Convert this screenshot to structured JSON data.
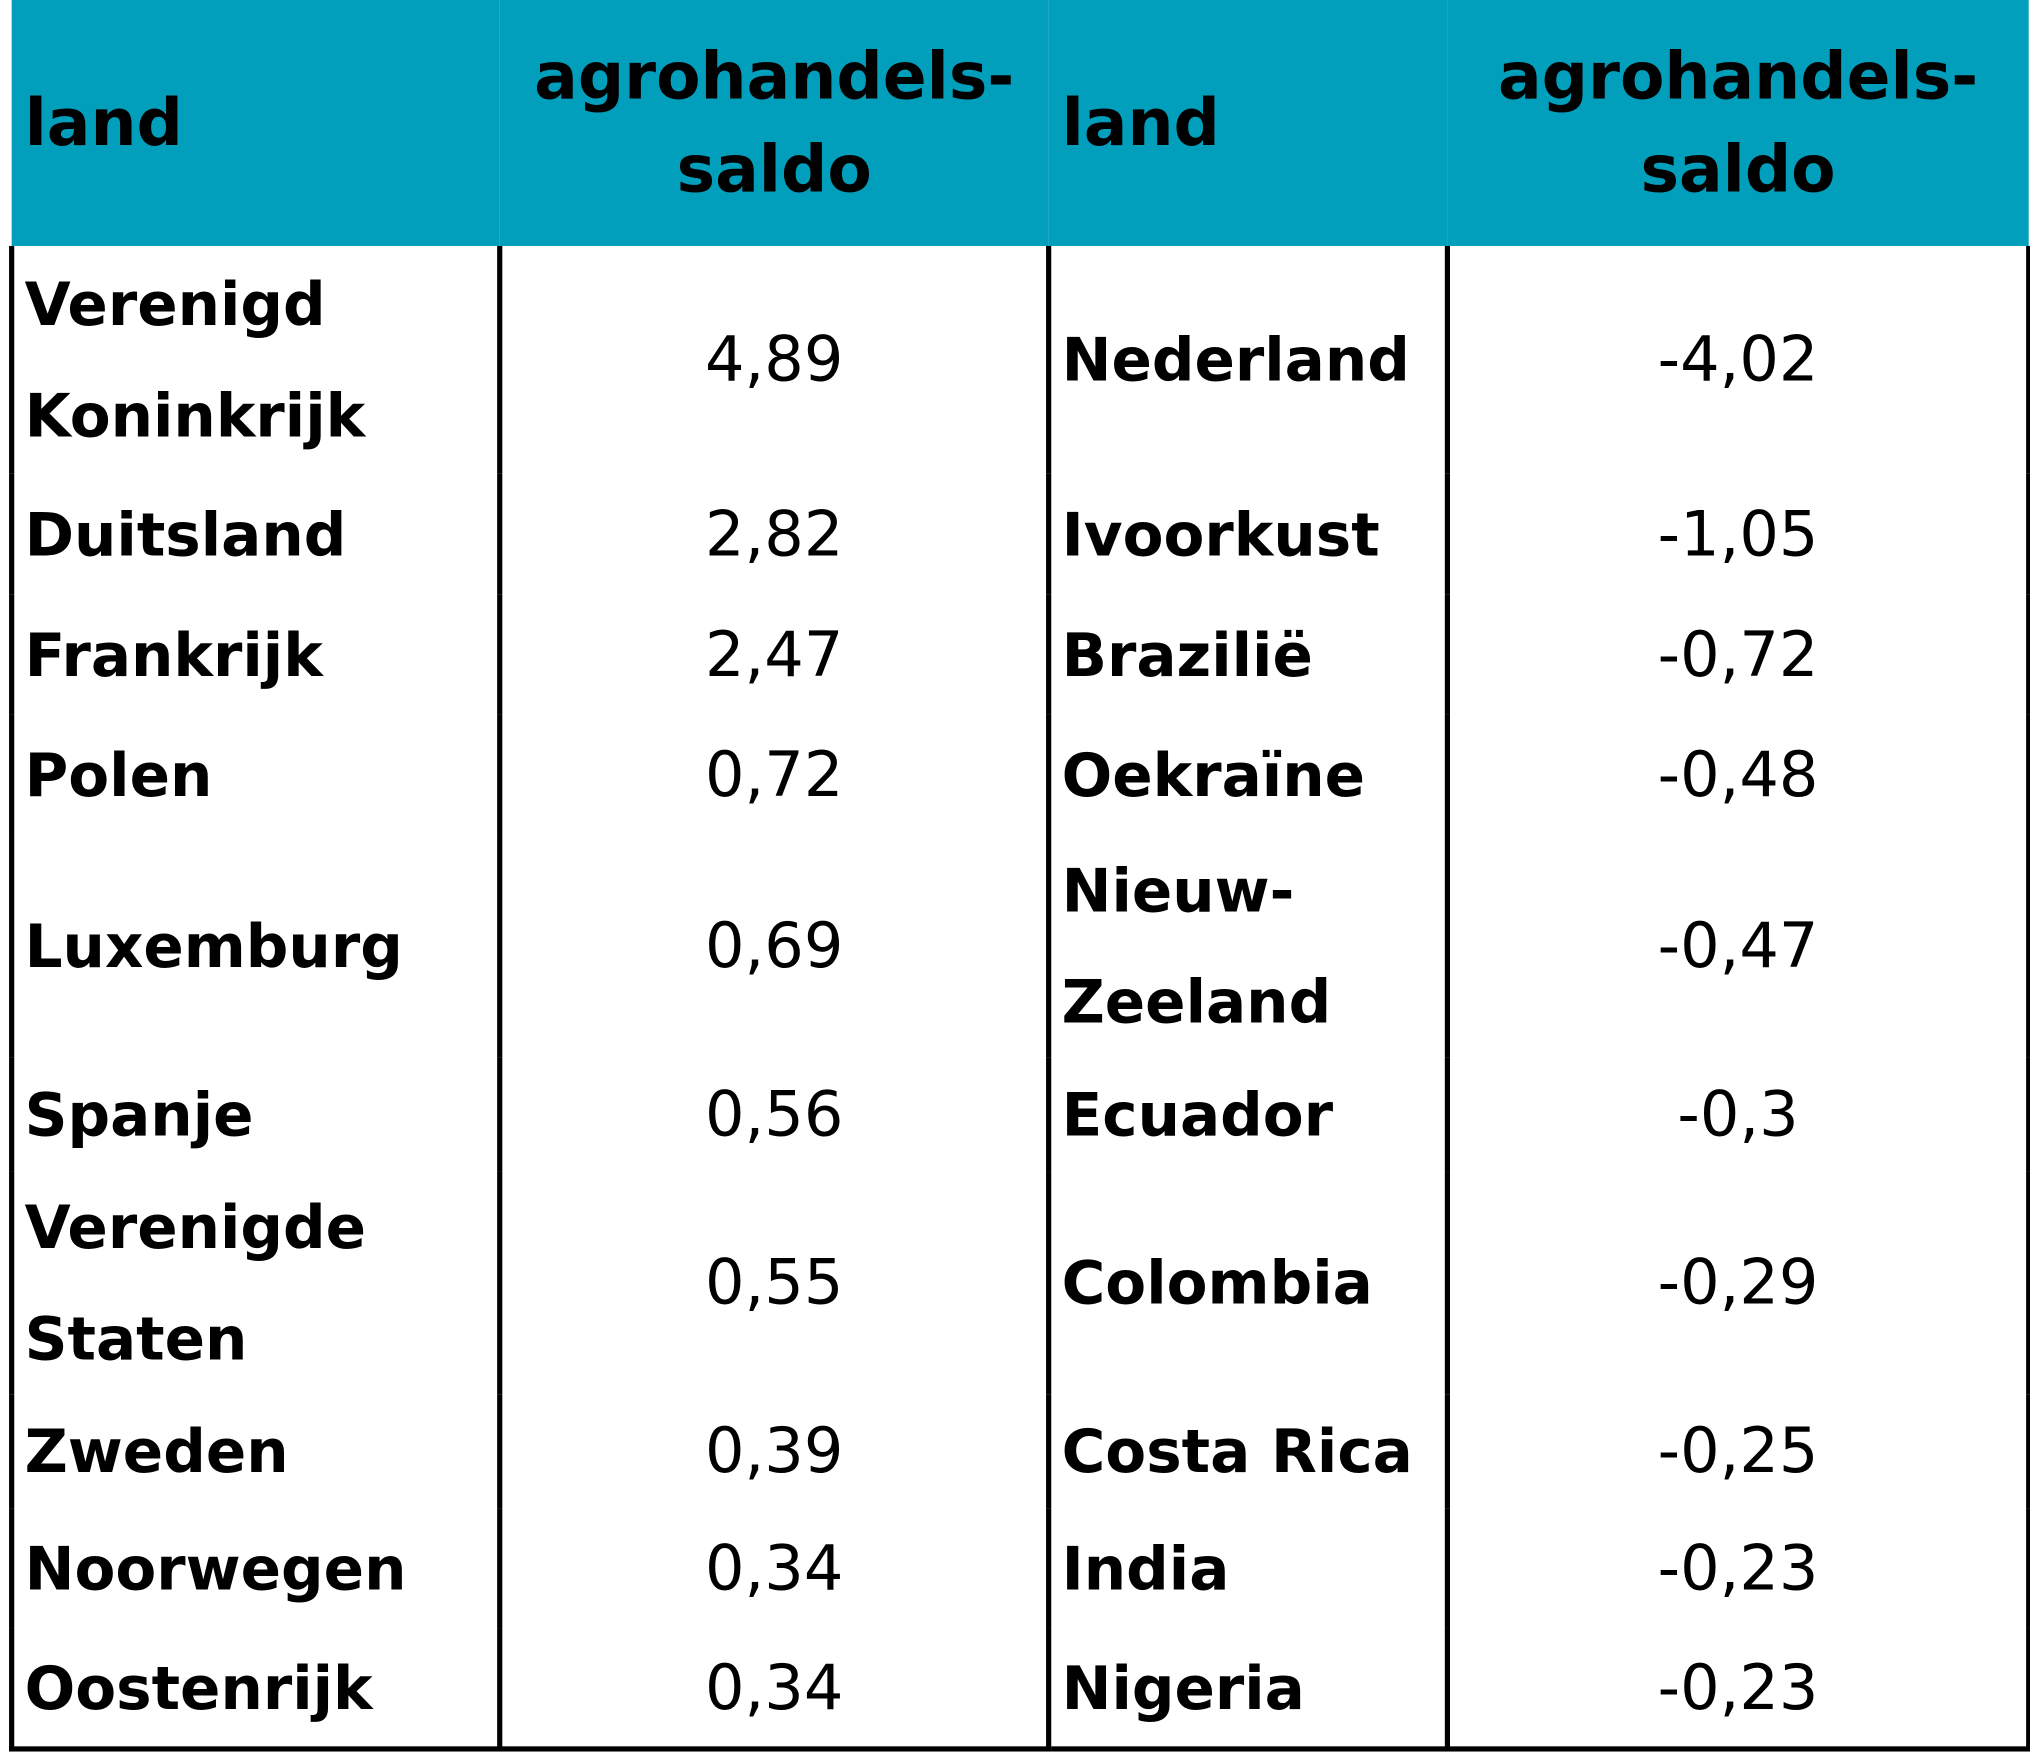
{
  "header": {
    "col1": "land",
    "col2_line1": "agrohandels-",
    "col2_line2": "saldo",
    "col3": "land",
    "col4_line1": "agrohandels-",
    "col4_line2": "saldo"
  },
  "rows": [
    {
      "left_land_line1": "Verenigd",
      "left_land_line2": "Koninkrijk",
      "left_value": "4,89",
      "right_land": "Nederland",
      "right_value": "-4,02"
    },
    {
      "left_land": "Duitsland",
      "left_value": "2,82",
      "right_land": "Ivoorkust",
      "right_value": "-1,05"
    },
    {
      "left_land": "Frankrijk",
      "left_value": "2,47",
      "right_land": "Brazilië",
      "right_value": "-0,72"
    },
    {
      "left_land": "Polen",
      "left_value": "0,72",
      "right_land": "Oekraïne",
      "right_value": "-0,48"
    },
    {
      "left_land": "Luxemburg",
      "left_value": "0,69",
      "right_land_line1": "Nieuw-",
      "right_land_line2": "Zeeland",
      "right_value": "-0,47"
    },
    {
      "left_land": "Spanje",
      "left_value": "0,56",
      "right_land": "Ecuador",
      "right_value": "-0,3"
    },
    {
      "left_land_line1": "Verenigde",
      "left_land_line2": "Staten",
      "left_value": "0,55",
      "right_land": "Colombia",
      "right_value": "-0,29"
    },
    {
      "left_land": "Zweden",
      "left_value": "0,39",
      "right_land": "Costa Rica",
      "right_value": "-0,25"
    },
    {
      "left_land": "Noorwegen",
      "left_value": "0,34",
      "right_land": "India",
      "right_value": "-0,23"
    },
    {
      "left_land": "Oostenrijk",
      "left_value": "0,34",
      "right_land": "Nigeria",
      "right_value": "-0,23"
    }
  ],
  "colors": {
    "header_background": "#029fbd",
    "border": "#000000",
    "text": "#000000"
  }
}
